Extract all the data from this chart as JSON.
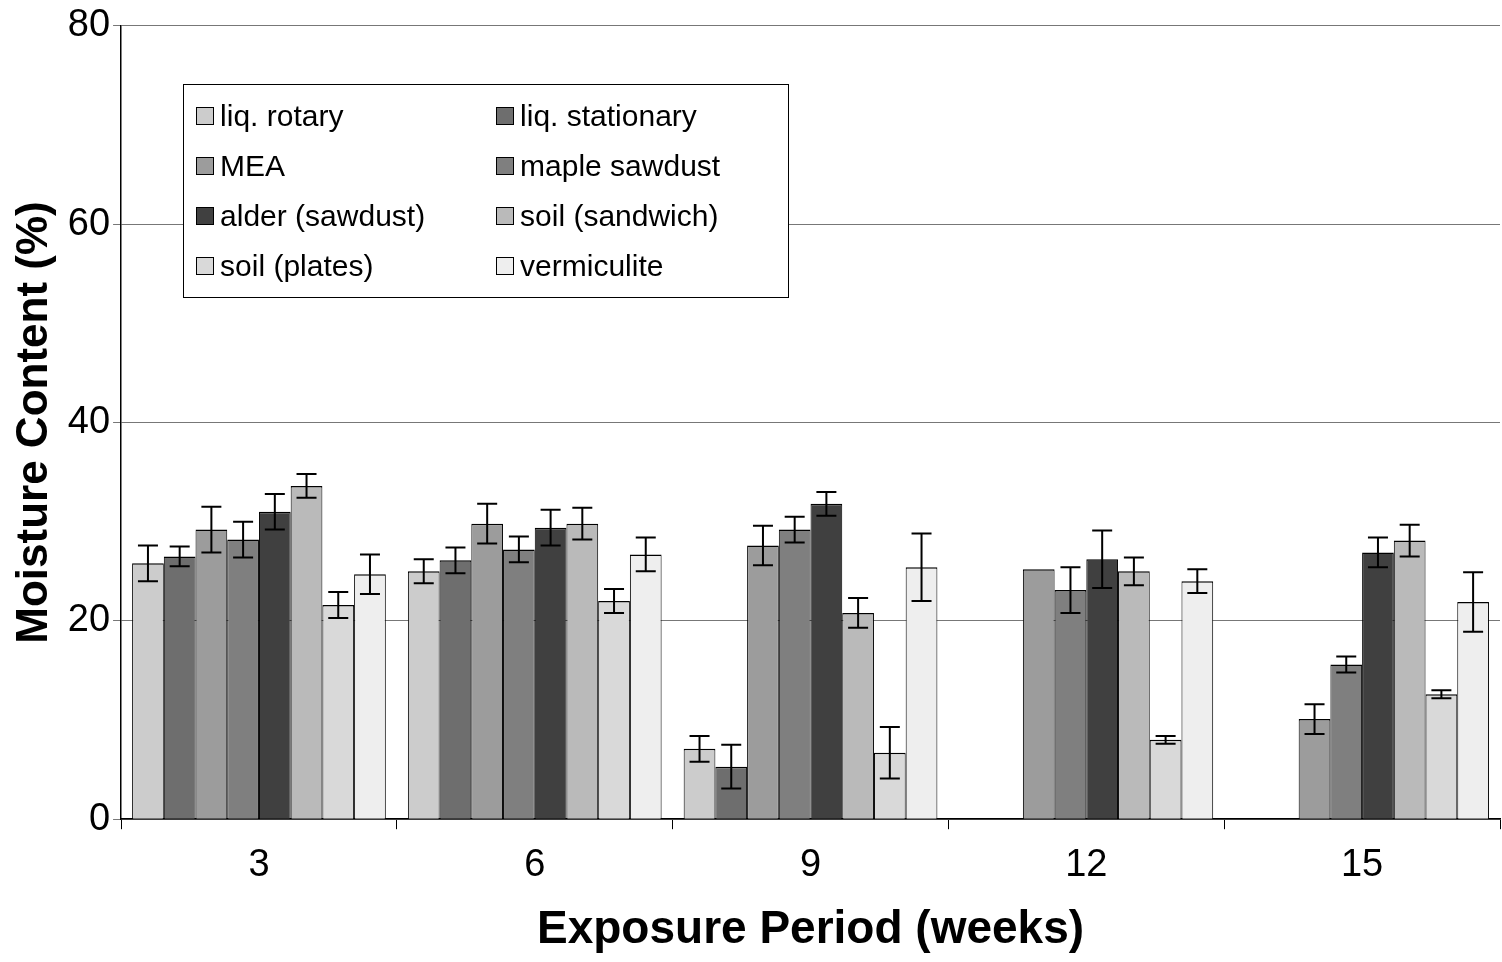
{
  "chart_data": {
    "type": "bar",
    "xlabel": "Exposure Period (weeks)",
    "ylabel": "Moisture Content (%)",
    "categories": [
      "3",
      "6",
      "9",
      "12",
      "15"
    ],
    "series": [
      {
        "name": "liq. rotary",
        "color": "#cccccc",
        "values": [
          25.8,
          25,
          7.1,
          null,
          null
        ],
        "errors": [
          1.8,
          1.2,
          1.3,
          null,
          null
        ]
      },
      {
        "name": "liq. stationary",
        "color": "#6e6e6e",
        "values": [
          26.5,
          26.1,
          5.3,
          null,
          null
        ],
        "errors": [
          1,
          1.3,
          2.2,
          null,
          null
        ]
      },
      {
        "name": "MEA",
        "color": "#9c9c9c",
        "values": [
          29.2,
          29.8,
          27.6,
          25.2,
          10.1
        ],
        "errors": [
          2.3,
          2,
          2,
          null,
          1.5
        ]
      },
      {
        "name": "maple sawdust",
        "color": "#7f7f7f",
        "values": [
          28.2,
          27.2,
          29.2,
          23.1,
          15.6
        ],
        "errors": [
          1.8,
          1.3,
          1.3,
          2.3,
          0.8
        ]
      },
      {
        "name": "alder (sawdust)",
        "color": "#404040",
        "values": [
          31,
          29.4,
          31.8,
          26.2,
          26.9
        ],
        "errors": [
          1.8,
          1.8,
          1.2,
          2.9,
          1.5
        ]
      },
      {
        "name": "soil (sandwich)",
        "color": "#bababa",
        "values": [
          33.6,
          29.8,
          20.8,
          25,
          28.1
        ],
        "errors": [
          1.2,
          1.6,
          1.5,
          1.4,
          1.6
        ]
      },
      {
        "name": "soil (plates)",
        "color": "#d9d9d9",
        "values": [
          21.6,
          22,
          6.7,
          8,
          12.6
        ],
        "errors": [
          1.3,
          1.2,
          2.6,
          0.4,
          0.4
        ]
      },
      {
        "name": "vermiculite",
        "color": "#eeeeee",
        "values": [
          24.7,
          26.7,
          25.4,
          24,
          21.9
        ],
        "errors": [
          2,
          1.7,
          3.4,
          1.2,
          3
        ]
      }
    ],
    "ylim": [
      0,
      80
    ],
    "yticks": [
      0,
      20,
      40,
      60,
      80
    ],
    "grid": "y",
    "legend": "top left"
  }
}
